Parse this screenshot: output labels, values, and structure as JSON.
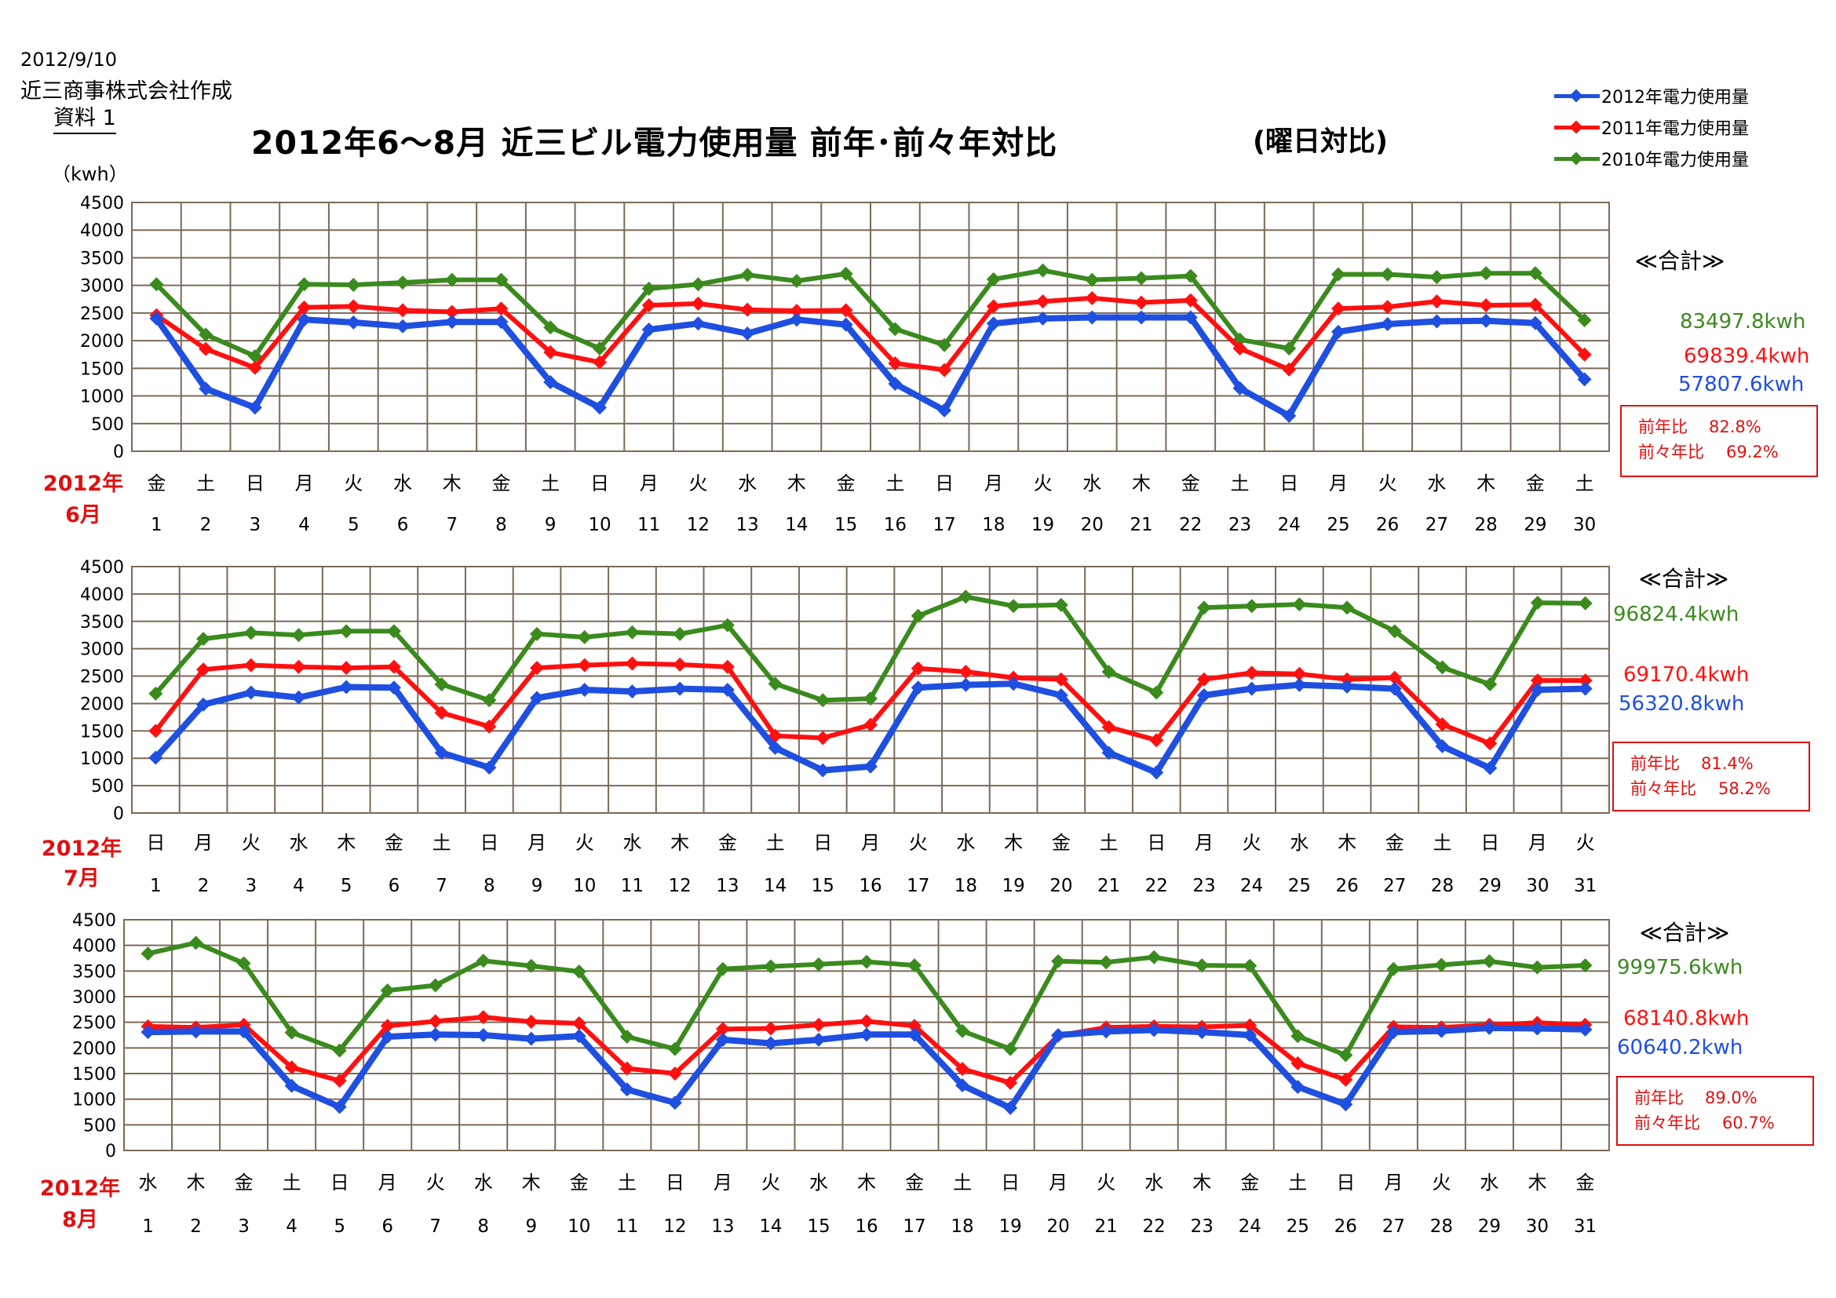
{
  "header": {
    "date": "2012/9/10",
    "company": "近三商事株式会社作成",
    "doc": "資料 1",
    "title": "2012年6～8月 近三ビル電力使用量 前年･前々年対比",
    "subtitle": "(曜日対比)",
    "unit": "（kwh）"
  },
  "legend": [
    "2012年電力使用量",
    "2011年電力使用量",
    "2010年電力使用量"
  ],
  "colors": {
    "s2012": "#1f4fe0",
    "s2011": "#ff1010",
    "s2010": "#3a8a1e",
    "grid": "#7a6a58",
    "ratio": "#e01010"
  },
  "chart_data": [
    {
      "type": "line",
      "month_label": [
        "2012年",
        "6月"
      ],
      "categories": [
        "1",
        "2",
        "3",
        "4",
        "5",
        "6",
        "7",
        "8",
        "9",
        "10",
        "11",
        "12",
        "13",
        "14",
        "15",
        "16",
        "17",
        "18",
        "19",
        "20",
        "21",
        "22",
        "23",
        "24",
        "25",
        "26",
        "27",
        "28",
        "29",
        "30"
      ],
      "weekdays": [
        "金",
        "土",
        "日",
        "月",
        "火",
        "水",
        "木",
        "金",
        "土",
        "日",
        "月",
        "火",
        "水",
        "木",
        "金",
        "土",
        "日",
        "月",
        "火",
        "水",
        "木",
        "金",
        "土",
        "日",
        "月",
        "火",
        "水",
        "木",
        "金",
        "土"
      ],
      "ylim": [
        0,
        4500
      ],
      "yticks": [
        "0",
        "500",
        "1000",
        "1500",
        "2000",
        "2500",
        "3000",
        "3500",
        "4000",
        "4500"
      ],
      "grid": true,
      "series": [
        {
          "name": "2012年電力使用量",
          "values": [
            2400,
            1130,
            790,
            2380,
            2330,
            2260,
            2340,
            2340,
            1250,
            790,
            2200,
            2310,
            2130,
            2380,
            2290,
            1220,
            740,
            2310,
            2400,
            2420,
            2420,
            2420,
            1140,
            640,
            2160,
            2300,
            2350,
            2360,
            2320,
            1300
          ]
        },
        {
          "name": "2011年電力使用量",
          "values": [
            2460,
            1850,
            1510,
            2600,
            2620,
            2550,
            2520,
            2580,
            1790,
            1610,
            2640,
            2670,
            2560,
            2540,
            2550,
            1590,
            1470,
            2620,
            2710,
            2770,
            2690,
            2730,
            1860,
            1480,
            2580,
            2610,
            2710,
            2640,
            2650,
            1750
          ]
        },
        {
          "name": "2010年電力使用量",
          "values": [
            3020,
            2110,
            1720,
            3020,
            3010,
            3050,
            3100,
            3100,
            2240,
            1860,
            2940,
            3020,
            3190,
            3080,
            3210,
            2210,
            1920,
            3110,
            3270,
            3100,
            3130,
            3170,
            2020,
            1860,
            3200,
            3200,
            3150,
            3220,
            3220,
            2370
          ]
        }
      ],
      "totals": {
        "heading": "≪合計≫",
        "t2010": "83497.8kwh",
        "t2011": "69839.4kwh",
        "t2012": "57807.6kwh"
      },
      "ratios": {
        "prev_label": "前年比",
        "prev": "82.8%",
        "prev2_label": "前々年比",
        "prev2": "69.2%"
      }
    },
    {
      "type": "line",
      "month_label": [
        "2012年",
        "7月"
      ],
      "categories": [
        "1",
        "2",
        "3",
        "4",
        "5",
        "6",
        "7",
        "8",
        "9",
        "10",
        "11",
        "12",
        "13",
        "14",
        "15",
        "16",
        "17",
        "18",
        "19",
        "20",
        "21",
        "22",
        "23",
        "24",
        "25",
        "26",
        "27",
        "28",
        "29",
        "30",
        "31"
      ],
      "weekdays": [
        "日",
        "月",
        "火",
        "水",
        "木",
        "金",
        "土",
        "日",
        "月",
        "火",
        "水",
        "木",
        "金",
        "土",
        "日",
        "月",
        "火",
        "水",
        "木",
        "金",
        "土",
        "日",
        "月",
        "火",
        "水",
        "木",
        "金",
        "土",
        "日",
        "月",
        "火"
      ],
      "ylim": [
        0,
        4500
      ],
      "yticks": [
        "0",
        "500",
        "1000",
        "1500",
        "2000",
        "2500",
        "3000",
        "3500",
        "4000",
        "4500"
      ],
      "grid": true,
      "series": [
        {
          "name": "2012年電力使用量",
          "values": [
            1010,
            1980,
            2200,
            2110,
            2300,
            2290,
            1100,
            830,
            2100,
            2250,
            2220,
            2270,
            2250,
            1190,
            780,
            850,
            2290,
            2340,
            2360,
            2150,
            1100,
            740,
            2150,
            2270,
            2340,
            2310,
            2270,
            1220,
            820,
            2250,
            2270
          ]
        },
        {
          "name": "2011年電力使用量",
          "values": [
            1500,
            2620,
            2700,
            2670,
            2650,
            2670,
            1830,
            1580,
            2650,
            2700,
            2730,
            2710,
            2670,
            1410,
            1370,
            1610,
            2640,
            2580,
            2470,
            2440,
            1570,
            1330,
            2440,
            2560,
            2540,
            2440,
            2470,
            1620,
            1270,
            2420,
            2420
          ]
        },
        {
          "name": "2010年電力使用量",
          "values": [
            2180,
            3180,
            3290,
            3250,
            3320,
            3320,
            2350,
            2060,
            3270,
            3210,
            3300,
            3270,
            3430,
            2360,
            2060,
            2090,
            3600,
            3950,
            3780,
            3800,
            2580,
            2200,
            3750,
            3780,
            3810,
            3750,
            3320,
            2660,
            2350,
            3840,
            3830
          ]
        }
      ],
      "totals": {
        "heading": "≪合計≫",
        "t2010": "96824.4kwh",
        "t2011": "69170.4kwh",
        "t2012": "56320.8kwh"
      },
      "ratios": {
        "prev_label": "前年比",
        "prev": "81.4%",
        "prev2_label": "前々年比",
        "prev2": "58.2%"
      }
    },
    {
      "type": "line",
      "month_label": [
        "2012年",
        "8月"
      ],
      "categories": [
        "1",
        "2",
        "3",
        "4",
        "5",
        "6",
        "7",
        "8",
        "9",
        "10",
        "11",
        "12",
        "13",
        "14",
        "15",
        "16",
        "17",
        "18",
        "19",
        "20",
        "21",
        "22",
        "23",
        "24",
        "25",
        "26",
        "27",
        "28",
        "29",
        "30",
        "31"
      ],
      "weekdays": [
        "水",
        "木",
        "金",
        "土",
        "日",
        "月",
        "火",
        "水",
        "木",
        "金",
        "土",
        "日",
        "月",
        "火",
        "水",
        "木",
        "金",
        "土",
        "日",
        "月",
        "火",
        "水",
        "木",
        "金",
        "土",
        "日",
        "月",
        "火",
        "水",
        "木",
        "金"
      ],
      "ylim": [
        0,
        4500
      ],
      "yticks": [
        "0",
        "500",
        "1000",
        "1500",
        "2000",
        "2500",
        "3000",
        "3500",
        "4000",
        "4500"
      ],
      "grid": true,
      "series": [
        {
          "name": "2012年電力使用量",
          "values": [
            2310,
            2320,
            2320,
            1260,
            850,
            2220,
            2260,
            2250,
            2180,
            2230,
            1190,
            930,
            2160,
            2090,
            2160,
            2260,
            2260,
            1270,
            830,
            2250,
            2320,
            2350,
            2310,
            2250,
            1240,
            900,
            2310,
            2330,
            2390,
            2380,
            2360
          ]
        },
        {
          "name": "2011年電力使用量",
          "values": [
            2420,
            2400,
            2450,
            1620,
            1360,
            2430,
            2520,
            2600,
            2510,
            2480,
            1600,
            1500,
            2370,
            2380,
            2450,
            2520,
            2430,
            1590,
            1320,
            2240,
            2400,
            2420,
            2410,
            2440,
            1700,
            1380,
            2410,
            2400,
            2450,
            2490,
            2450
          ]
        },
        {
          "name": "2010年電力使用量",
          "values": [
            3840,
            4050,
            3650,
            2300,
            1950,
            3120,
            3220,
            3700,
            3600,
            3490,
            2220,
            1980,
            3540,
            3590,
            3630,
            3680,
            3610,
            2330,
            1980,
            3690,
            3670,
            3770,
            3610,
            3600,
            2230,
            1860,
            3540,
            3620,
            3690,
            3570,
            3610
          ]
        }
      ],
      "totals": {
        "heading": "≪合計≫",
        "t2010": "99975.6kwh",
        "t2011": "68140.8kwh",
        "t2012": "60640.2kwh"
      },
      "ratios": {
        "prev_label": "前年比",
        "prev": "89.0%",
        "prev2_label": "前々年比",
        "prev2": "60.7%"
      }
    }
  ]
}
